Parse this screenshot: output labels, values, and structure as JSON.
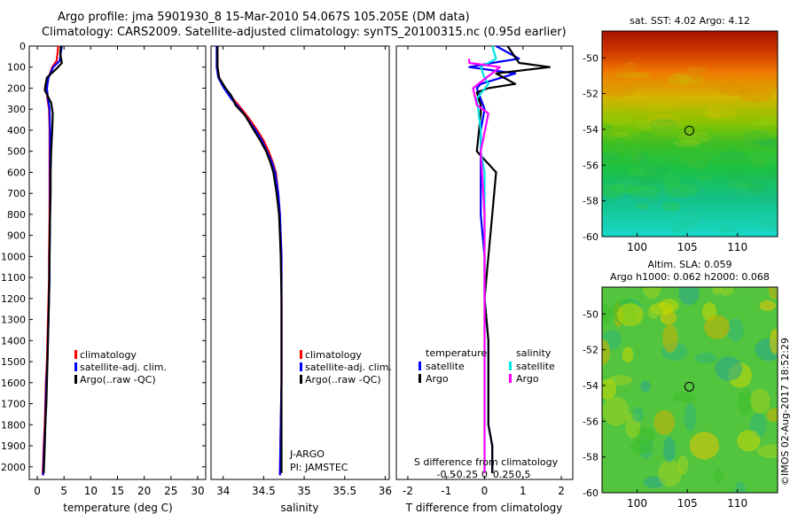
{
  "header": {
    "title_line1": "Argo profile: jma 5901930_8 15-Mar-2010 54.067S 105.205E (DM data)",
    "title_line2": "Climatology: CARS2009. Satellite-adjusted climatology: synTS_20100315.nc (0.95d earlier)"
  },
  "colors": {
    "climatology": "#ff0000",
    "satellite": "#0000ff",
    "argo": "#000000",
    "sat_salinity": "#00e5e5",
    "argo_salinity": "#ff00ff"
  },
  "depth_axis": {
    "ticks": [
      0,
      100,
      200,
      300,
      400,
      500,
      600,
      700,
      800,
      900,
      1000,
      1100,
      1200,
      1300,
      1400,
      1500,
      1600,
      1700,
      1800,
      1900,
      2000
    ],
    "ylim": [
      0,
      2060
    ]
  },
  "chart_data": [
    {
      "type": "line",
      "id": "temperature",
      "xlabel": "temperature (deg C)",
      "xlim": [
        -1.5,
        31.5
      ],
      "xticks": [
        0,
        5,
        10,
        15,
        20,
        25,
        30
      ],
      "legend": [
        "climatology",
        "satellite-adj. clim.",
        "Argo(..raw -QC)"
      ],
      "legend_position": "lower-middle",
      "series": [
        {
          "name": "climatology",
          "color": "#ff0000",
          "x": [
            3.9,
            3.8,
            3.6,
            2.8,
            2.1,
            1.7,
            1.9,
            2.2,
            2.3,
            2.3,
            2.3,
            2.3,
            2.2,
            2.2,
            2.1,
            2.0,
            1.9,
            1.8,
            1.6,
            1.5,
            1.4,
            1.2,
            1.0
          ],
          "y": [
            0,
            30,
            70,
            100,
            150,
            200,
            250,
            300,
            400,
            500,
            600,
            800,
            1000,
            1100,
            1200,
            1300,
            1400,
            1500,
            1600,
            1700,
            1800,
            1900,
            2040
          ]
        },
        {
          "name": "satellite-adj. clim.",
          "color": "#0000ff",
          "x": [
            4.6,
            4.4,
            4.2,
            3.0,
            2.1,
            1.8,
            2.0,
            2.3,
            2.4,
            2.4,
            2.4,
            2.4,
            2.3,
            2.3,
            2.2,
            2.1,
            2.0,
            1.9,
            1.7,
            1.6,
            1.5,
            1.3,
            1.1
          ],
          "y": [
            0,
            30,
            70,
            100,
            150,
            200,
            250,
            300,
            400,
            500,
            600,
            800,
            1000,
            1100,
            1200,
            1300,
            1400,
            1500,
            1600,
            1700,
            1800,
            1900,
            2040
          ]
        },
        {
          "name": "Argo",
          "color": "#000000",
          "x": [
            4.4,
            4.3,
            4.6,
            3.5,
            1.8,
            1.5,
            1.4,
            2.6,
            2.9,
            2.8,
            2.6,
            2.5,
            2.5,
            2.4,
            2.3,
            2.2,
            2.0,
            1.9,
            1.8,
            1.7,
            1.5,
            1.4,
            1.2
          ],
          "y": [
            0,
            40,
            80,
            110,
            150,
            190,
            210,
            270,
            320,
            400,
            500,
            600,
            700,
            800,
            1000,
            1200,
            1400,
            1500,
            1600,
            1700,
            1800,
            1900,
            2030
          ]
        }
      ]
    },
    {
      "type": "line",
      "id": "salinity",
      "xlabel": "salinity",
      "xlim": [
        33.85,
        36.05
      ],
      "xticks": [
        34,
        34.5,
        35,
        35.5,
        36
      ],
      "xticklabels": [
        "34",
        "34.5",
        "35",
        "35.5",
        "36"
      ],
      "legend": [
        "climatology",
        "satellite-adj. clim.",
        "Argo(..raw -QC)"
      ],
      "legend_position": "lower-right",
      "annotation": [
        "J-ARGO",
        "PI: JAMSTEC"
      ],
      "series": [
        {
          "name": "climatology",
          "color": "#ff0000",
          "x": [
            33.93,
            33.93,
            33.95,
            34.02,
            34.12,
            34.23,
            34.33,
            34.42,
            34.5,
            34.56,
            34.61,
            34.65,
            34.68,
            34.7,
            34.71,
            34.72,
            34.72,
            34.72,
            34.72,
            34.71,
            34.7
          ],
          "y": [
            0,
            100,
            150,
            200,
            250,
            300,
            350,
            400,
            450,
            500,
            550,
            600,
            700,
            800,
            900,
            1000,
            1200,
            1400,
            1600,
            1800,
            2040
          ]
        },
        {
          "name": "satellite-adj. clim.",
          "color": "#0000ff",
          "x": [
            33.92,
            33.92,
            33.94,
            34.01,
            34.1,
            34.21,
            34.31,
            34.4,
            34.48,
            34.54,
            34.6,
            34.64,
            34.68,
            34.7,
            34.71,
            34.72,
            34.72,
            34.72,
            34.72,
            34.71,
            34.7
          ],
          "y": [
            0,
            100,
            150,
            200,
            250,
            300,
            350,
            400,
            450,
            500,
            550,
            600,
            700,
            800,
            900,
            1000,
            1200,
            1400,
            1600,
            1800,
            2040
          ]
        },
        {
          "name": "Argo",
          "color": "#000000",
          "x": [
            33.93,
            33.93,
            33.95,
            34.03,
            34.09,
            34.12,
            34.15,
            34.27,
            34.38,
            34.46,
            34.53,
            34.58,
            34.62,
            34.66,
            34.69,
            34.7,
            34.71,
            34.72,
            34.72,
            34.72,
            34.72
          ],
          "y": [
            0,
            100,
            150,
            200,
            230,
            250,
            280,
            330,
            400,
            450,
            500,
            550,
            600,
            700,
            800,
            900,
            1000,
            1200,
            1500,
            1800,
            2030
          ]
        }
      ]
    },
    {
      "type": "line",
      "id": "difference",
      "xlabel": "T difference from climatology",
      "xlabel_top": "S difference from climatology",
      "xlim": [
        -2.3,
        2.3
      ],
      "xticks": [
        -2,
        -1,
        0,
        1,
        2
      ],
      "xticks_top": [
        "-0.5",
        "-0.25",
        "0",
        "0.25",
        "0.5"
      ],
      "legend_headers": [
        "temperature",
        "salinity"
      ],
      "legend": [
        "satellite",
        "Argo",
        "satellite",
        "Argo"
      ],
      "legend_position": "lower-middle",
      "series": [
        {
          "name": "T satellite",
          "color": "#0000ff",
          "x": [
            0.3,
            0.9,
            0.2,
            -0.4,
            0.8,
            -0.1,
            -0.2,
            0.0,
            -0.1,
            -0.1,
            -0.1,
            -0.1,
            0.0,
            0.0,
            0.1,
            0.1,
            0.1,
            0.2,
            0.2
          ],
          "y": [
            0,
            60,
            80,
            100,
            130,
            180,
            200,
            300,
            400,
            500,
            600,
            800,
            1000,
            1200,
            1400,
            1600,
            1800,
            1900,
            2030
          ]
        },
        {
          "name": "T Argo",
          "color": "#000000",
          "x": [
            0.6,
            0.9,
            1.7,
            0.3,
            0.8,
            0.1,
            -0.2,
            -0.1,
            -0.1,
            -0.2,
            0.3,
            0.2,
            0.1,
            0.0,
            0.1,
            0.1,
            0.1,
            0.2,
            0.2
          ],
          "y": [
            0,
            80,
            100,
            130,
            180,
            200,
            220,
            280,
            320,
            500,
            600,
            800,
            1000,
            1200,
            1400,
            1600,
            1800,
            1900,
            2030
          ]
        },
        {
          "name": "S satellite",
          "color": "#00e5e5",
          "x": [
            0.2,
            0.3,
            -0.1,
            0.0,
            0.1,
            -0.2,
            -0.1,
            -0.1,
            0.0,
            0.0,
            0.0,
            0.0,
            0.0,
            0.0,
            0.0
          ],
          "y": [
            0,
            60,
            100,
            150,
            180,
            250,
            400,
            500,
            600,
            800,
            1000,
            1200,
            1500,
            1800,
            2030
          ]
        },
        {
          "name": "S Argo",
          "color": "#ff00ff",
          "x": [
            -0.4,
            -0.4,
            0.4,
            -0.3,
            -0.2,
            0.1,
            -0.1,
            0.0,
            0.0,
            0.0
          ],
          "y": [
            60,
            80,
            100,
            200,
            280,
            320,
            500,
            800,
            1500,
            2030
          ]
        }
      ]
    },
    {
      "type": "heatmap",
      "id": "sst-map",
      "title": "sat. SST: 4.02  Argo: 4.12",
      "xlim": [
        96.5,
        114
      ],
      "ylim": [
        -60,
        -48.5
      ],
      "xticks": [
        100,
        105,
        110
      ],
      "yticks": [
        -50,
        -52,
        -54,
        -56,
        -58,
        -60
      ],
      "profile_location": [
        105.2,
        -54.07
      ]
    },
    {
      "type": "heatmap",
      "id": "sla-map",
      "title_line1": "Altim. SLA: 0.059",
      "title_line2": "Argo h1000: 0.062 h2000: 0.068",
      "xlim": [
        96.5,
        114
      ],
      "ylim": [
        -60,
        -48.5
      ],
      "xticks": [
        100,
        105,
        110
      ],
      "yticks": [
        -50,
        -52,
        -54,
        -56,
        -58,
        -60
      ],
      "profile_location": [
        105.2,
        -54.07
      ]
    }
  ],
  "watermark": "©IMOS 02-Aug-2017 18:52:29"
}
